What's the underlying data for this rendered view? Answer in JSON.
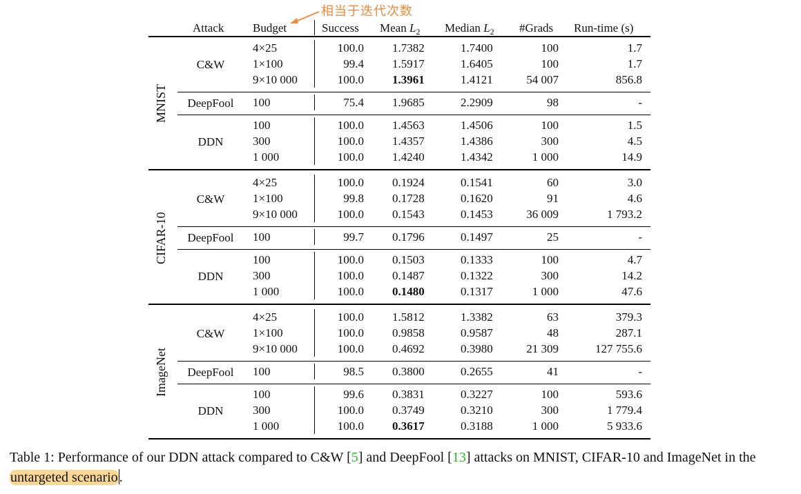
{
  "annotation": {
    "text": "相当于迭代次数",
    "color": "#f08a3c",
    "points_to": "Budget"
  },
  "table": {
    "headers": {
      "attack": "Attack",
      "budget": "Budget",
      "success": "Success",
      "mean_l2_base": "Mean ",
      "median_l2_base": "Median ",
      "l2_var": "L",
      "l2_sub": "2",
      "grads": "#Grads",
      "runtime": "Run-time (s)"
    },
    "datasets": [
      {
        "name": "MNIST",
        "groups": [
          {
            "attack": "C&W",
            "rows": [
              {
                "budget": "4×25",
                "success": "100.0",
                "mean": "1.7382",
                "median": "1.7400",
                "grads": "100",
                "runtime": "1.7"
              },
              {
                "budget": "1×100",
                "success": "99.4",
                "mean": "1.5917",
                "median": "1.6405",
                "grads": "100",
                "runtime": "1.7"
              },
              {
                "budget": "9×10 000",
                "success": "100.0",
                "mean": "1.3961",
                "median": "1.4121",
                "grads": "54 007",
                "runtime": "856.8",
                "bold_mean": true
              }
            ]
          },
          {
            "attack": "DeepFool",
            "rows": [
              {
                "budget": "100",
                "success": "75.4",
                "mean": "1.9685",
                "median": "2.2909",
                "grads": "98",
                "runtime": "-"
              }
            ]
          },
          {
            "attack": "DDN",
            "rows": [
              {
                "budget": "100",
                "success": "100.0",
                "mean": "1.4563",
                "median": "1.4506",
                "grads": "100",
                "runtime": "1.5"
              },
              {
                "budget": "300",
                "success": "100.0",
                "mean": "1.4357",
                "median": "1.4386",
                "grads": "300",
                "runtime": "4.5"
              },
              {
                "budget": "1 000",
                "success": "100.0",
                "mean": "1.4240",
                "median": "1.4342",
                "grads": "1 000",
                "runtime": "14.9"
              }
            ]
          }
        ]
      },
      {
        "name": "CIFAR-10",
        "groups": [
          {
            "attack": "C&W",
            "rows": [
              {
                "budget": "4×25",
                "success": "100.0",
                "mean": "0.1924",
                "median": "0.1541",
                "grads": "60",
                "runtime": "3.0"
              },
              {
                "budget": "1×100",
                "success": "99.8",
                "mean": "0.1728",
                "median": "0.1620",
                "grads": "91",
                "runtime": "4.6"
              },
              {
                "budget": "9×10 000",
                "success": "100.0",
                "mean": "0.1543",
                "median": "0.1453",
                "grads": "36 009",
                "runtime": "1 793.2"
              }
            ]
          },
          {
            "attack": "DeepFool",
            "rows": [
              {
                "budget": "100",
                "success": "99.7",
                "mean": "0.1796",
                "median": "0.1497",
                "grads": "25",
                "runtime": "-"
              }
            ]
          },
          {
            "attack": "DDN",
            "rows": [
              {
                "budget": "100",
                "success": "100.0",
                "mean": "0.1503",
                "median": "0.1333",
                "grads": "100",
                "runtime": "4.7"
              },
              {
                "budget": "300",
                "success": "100.0",
                "mean": "0.1487",
                "median": "0.1322",
                "grads": "300",
                "runtime": "14.2"
              },
              {
                "budget": "1 000",
                "success": "100.0",
                "mean": "0.1480",
                "median": "0.1317",
                "grads": "1 000",
                "runtime": "47.6",
                "bold_mean": true
              }
            ]
          }
        ]
      },
      {
        "name": "ImageNet",
        "groups": [
          {
            "attack": "C&W",
            "rows": [
              {
                "budget": "4×25",
                "success": "100.0",
                "mean": "1.5812",
                "median": "1.3382",
                "grads": "63",
                "runtime": "379.3"
              },
              {
                "budget": "1×100",
                "success": "100.0",
                "mean": "0.9858",
                "median": "0.9587",
                "grads": "48",
                "runtime": "287.1"
              },
              {
                "budget": "9×10 000",
                "success": "100.0",
                "mean": "0.4692",
                "median": "0.3980",
                "grads": "21 309",
                "runtime": "127 755.6"
              }
            ]
          },
          {
            "attack": "DeepFool",
            "rows": [
              {
                "budget": "100",
                "success": "98.5",
                "mean": "0.3800",
                "median": "0.2655",
                "grads": "41",
                "runtime": "-"
              }
            ]
          },
          {
            "attack": "DDN",
            "rows": [
              {
                "budget": "100",
                "success": "99.6",
                "mean": "0.3831",
                "median": "0.3227",
                "grads": "100",
                "runtime": "593.6"
              },
              {
                "budget": "300",
                "success": "100.0",
                "mean": "0.3749",
                "median": "0.3210",
                "grads": "300",
                "runtime": "1 779.4"
              },
              {
                "budget": "1 000",
                "success": "100.0",
                "mean": "0.3617",
                "median": "0.3188",
                "grads": "1 000",
                "runtime": "5 933.6",
                "bold_mean": true
              }
            ]
          }
        ]
      }
    ]
  },
  "caption": {
    "part1": "Table 1: Performance of our DDN attack compared to C&W [",
    "cite1": "5",
    "part2": "] and DeepFool [",
    "cite2": "13",
    "part3": "] attacks on MNIST, CIFAR-10 and ImageNet in the ",
    "highlighted": "untargeted scenario",
    "part4": ".",
    "highlight_color": "#fcd793",
    "cite_color": "#1ec41e"
  }
}
